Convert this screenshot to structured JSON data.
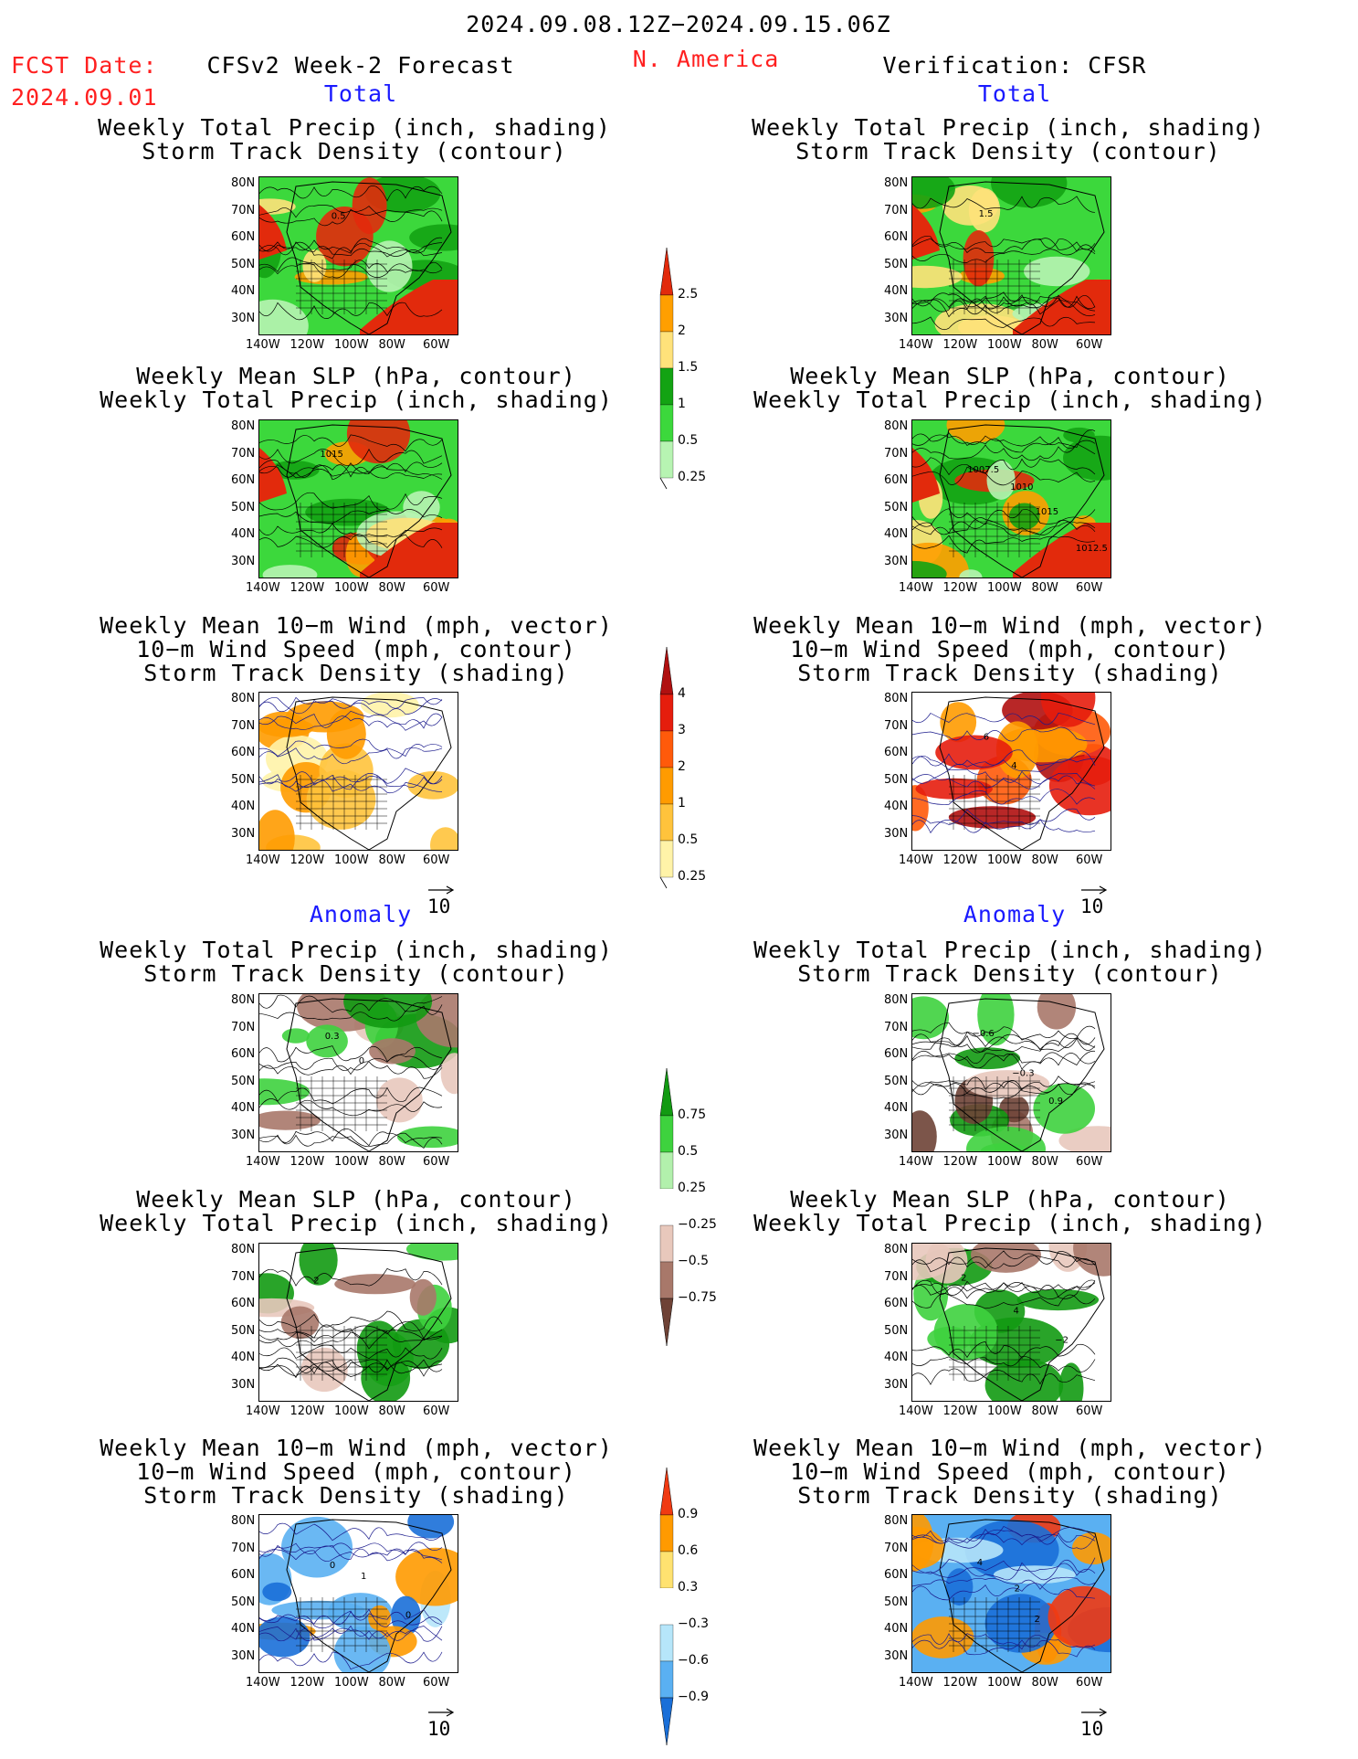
{
  "header": {
    "date_range": "2024.09.08.12Z−2024.09.15.06Z",
    "fcst_label": "FCST Date:",
    "fcst_date": "2024.09.01",
    "model_title": "CFSv2 Week-2 Forecast",
    "region": "N. America",
    "verification": "Verification: CFSR"
  },
  "sections": {
    "total": "Total",
    "anomaly": "Anomaly"
  },
  "panel_titles": {
    "precip_storm": [
      "Weekly Total Precip (inch, shading)",
      "Storm Track Density (contour)"
    ],
    "slp_precip": [
      "Weekly Mean SLP (hPa, contour)",
      "Weekly Total Precip (inch, shading)"
    ],
    "wind_storm": [
      "Weekly Mean 10−m Wind (mph, vector)",
      "10−m Wind Speed (mph, contour)",
      "Storm Track Density (shading)"
    ]
  },
  "axes": {
    "lat_ticks": [
      "80N",
      "70N",
      "60N",
      "50N",
      "40N",
      "30N"
    ],
    "lon_ticks": [
      "140W",
      "120W",
      "100W",
      "80W",
      "60W"
    ]
  },
  "vector_ref": "10",
  "colorbars": {
    "precip_total": {
      "labels": [
        "2.5",
        "2",
        "1.5",
        "1",
        "0.5",
        "0.25"
      ],
      "colors": [
        "#e22a0c",
        "#ff9f00",
        "#ffe27a",
        "#13a313",
        "#3cd83c",
        "#b7f4b2"
      ]
    },
    "storm_total": {
      "labels": [
        "4",
        "3",
        "2",
        "1",
        "0.5",
        "0.25"
      ],
      "colors": [
        "#b01010",
        "#e51d0d",
        "#ff5a0a",
        "#ff9b00",
        "#ffc33c",
        "#fff3a8"
      ]
    },
    "precip_anom": {
      "labels": [
        "0.75",
        "0.5",
        "0.25",
        "−0.25",
        "−0.5",
        "−0.75"
      ],
      "colors": [
        "#129a12",
        "#3ed23e",
        "#b2f0ac",
        "#ffffff",
        "#e8c8bc",
        "#a8786a",
        "#6e4236"
      ]
    },
    "storm_anom": {
      "labels": [
        "0.9",
        "0.6",
        "0.3",
        "−0.3",
        "−0.6",
        "−0.9"
      ],
      "colors": [
        "#f03a12",
        "#ff9a00",
        "#ffe270",
        "#ffffff",
        "#b6e6fa",
        "#5ab0f2",
        "#1a6fd8"
      ]
    }
  },
  "panels": [
    {
      "id": "fcst-total-precip",
      "labels": [
        "0.5"
      ]
    },
    {
      "id": "verif-total-precip",
      "labels": [
        "1.5"
      ]
    },
    {
      "id": "fcst-total-slp",
      "labels": [
        "1015"
      ]
    },
    {
      "id": "verif-total-slp",
      "labels": [
        "1007.5",
        "1010",
        "1015",
        "1012.5"
      ]
    },
    {
      "id": "fcst-total-wind",
      "labels": []
    },
    {
      "id": "verif-total-wind",
      "labels": [
        "6",
        "4"
      ]
    },
    {
      "id": "fcst-anom-precip",
      "labels": [
        "0.3",
        "0"
      ]
    },
    {
      "id": "verif-anom-precip",
      "labels": [
        "−0.6",
        "−0.3",
        "0.9"
      ]
    },
    {
      "id": "fcst-anom-slp",
      "labels": [
        "2"
      ]
    },
    {
      "id": "verif-anom-slp",
      "labels": [
        "2",
        "4",
        "−2"
      ]
    },
    {
      "id": "fcst-anom-wind",
      "labels": [
        "0",
        "1",
        "0"
      ]
    },
    {
      "id": "verif-anom-wind",
      "labels": [
        "4",
        "2",
        "2"
      ]
    }
  ]
}
